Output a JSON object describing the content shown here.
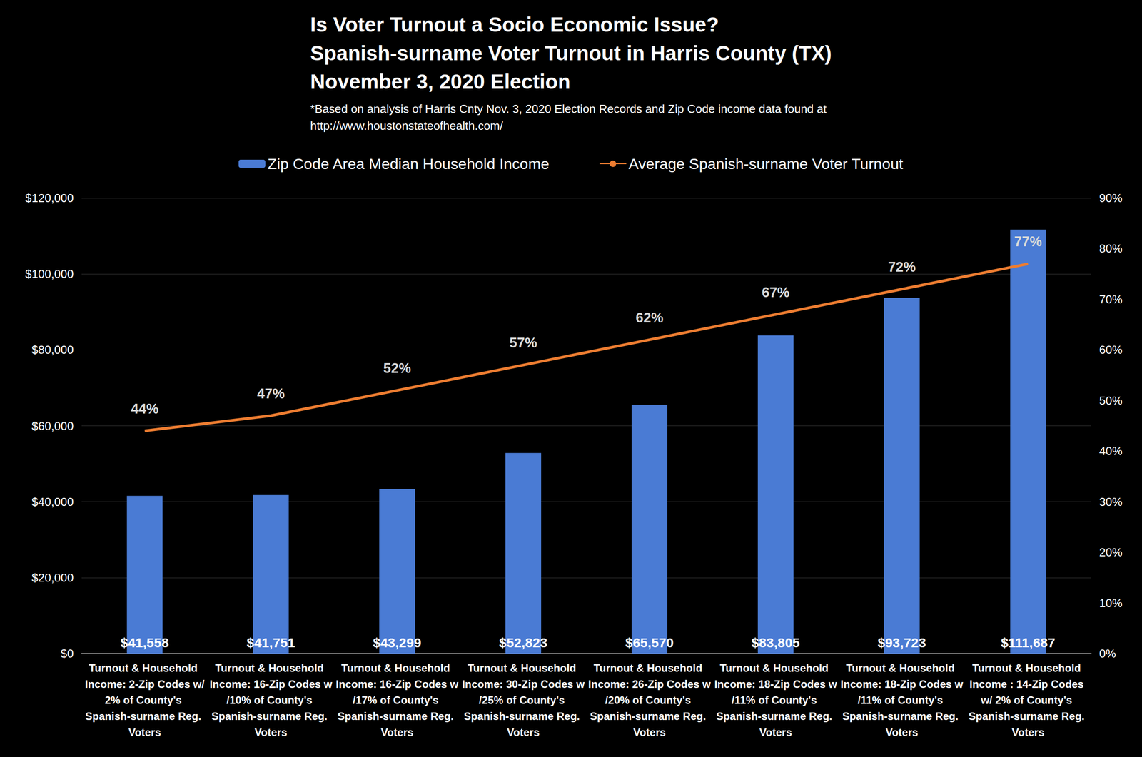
{
  "chart_data": {
    "type": "bar",
    "title": "Is Voter Turnout a Socio Economic Issue?\nSpanish-surname Voter Turnout in Harris County (TX)\nNovember 3, 2020 Election",
    "subtitle": "*Based on analysis of Harris Cnty Nov. 3, 2020 Election Records and Zip Code income data found at\nhttp://www.houstonstateofhealth.com/",
    "categories": [
      "Turnout & Household Income: 2-Zip Codes w/2% of County's Spanish-surname Reg. Voters",
      "Turnout & Household Income: 16-Zip Codes w/10% of County's Spanish-surname Reg. Voters",
      "Turnout & Household Income: 16-Zip Codes w/17% of County's Spanish-surname Reg. Voters",
      "Turnout & Household Income: 30-Zip Codes w/25% of County's Spanish-surname Reg. Voters",
      "Turnout & Household Income: 26-Zip Codes w/20% of County's Spanish-surname Reg. Voters",
      "Turnout & Household Income: 18-Zip Codes w/11% of County's Spanish-surname Reg. Voters",
      "Turnout & Household Income: 18-Zip Codes w/11% of County's Spanish-surname Reg. Voters",
      "Turnout & Household Income : 14-Zip Codes w/ 2% of County's Spanish-surname Reg. Voters"
    ],
    "series": [
      {
        "name": "Zip Code Area Median Household Income",
        "type": "bar",
        "color": "#4a7bd4",
        "values": [
          41558,
          41751,
          43299,
          52823,
          65570,
          83805,
          93723,
          111687
        ],
        "value_labels": [
          "$41,558",
          "$41,751",
          "$43,299",
          "$52,823",
          "$65,570",
          "$83,805",
          "$93,723",
          "$111,687"
        ]
      },
      {
        "name": "Average Spanish-surname Voter Turnout",
        "type": "line",
        "color": "#ed7d31",
        "axis": "y2",
        "values": [
          44,
          47,
          52,
          57,
          62,
          67,
          72,
          77
        ],
        "value_labels": [
          "44%",
          "47%",
          "52%",
          "57%",
          "62%",
          "67%",
          "72%",
          "77%"
        ]
      }
    ],
    "ylim": [
      0,
      120000
    ],
    "yticks": [
      {
        "value": 0,
        "label": "$0"
      },
      {
        "value": 20000,
        "label": "$20,000"
      },
      {
        "value": 40000,
        "label": "$40,000"
      },
      {
        "value": 60000,
        "label": "$60,000"
      },
      {
        "value": 80000,
        "label": "$80,000"
      },
      {
        "value": 100000,
        "label": "$100,000"
      },
      {
        "value": 120000,
        "label": "$120,000"
      }
    ],
    "y2lim": [
      0,
      90
    ],
    "y2ticks": [
      {
        "value": 0,
        "label": "0%"
      },
      {
        "value": 10,
        "label": "10%"
      },
      {
        "value": 20,
        "label": "20%"
      },
      {
        "value": 30,
        "label": "30%"
      },
      {
        "value": 40,
        "label": "40%"
      },
      {
        "value": 50,
        "label": "50%"
      },
      {
        "value": 60,
        "label": "60%"
      },
      {
        "value": 70,
        "label": "70%"
      },
      {
        "value": 80,
        "label": "80%"
      },
      {
        "value": 90,
        "label": "90%"
      }
    ],
    "grid": true,
    "legend": "top",
    "data_labels": true
  }
}
